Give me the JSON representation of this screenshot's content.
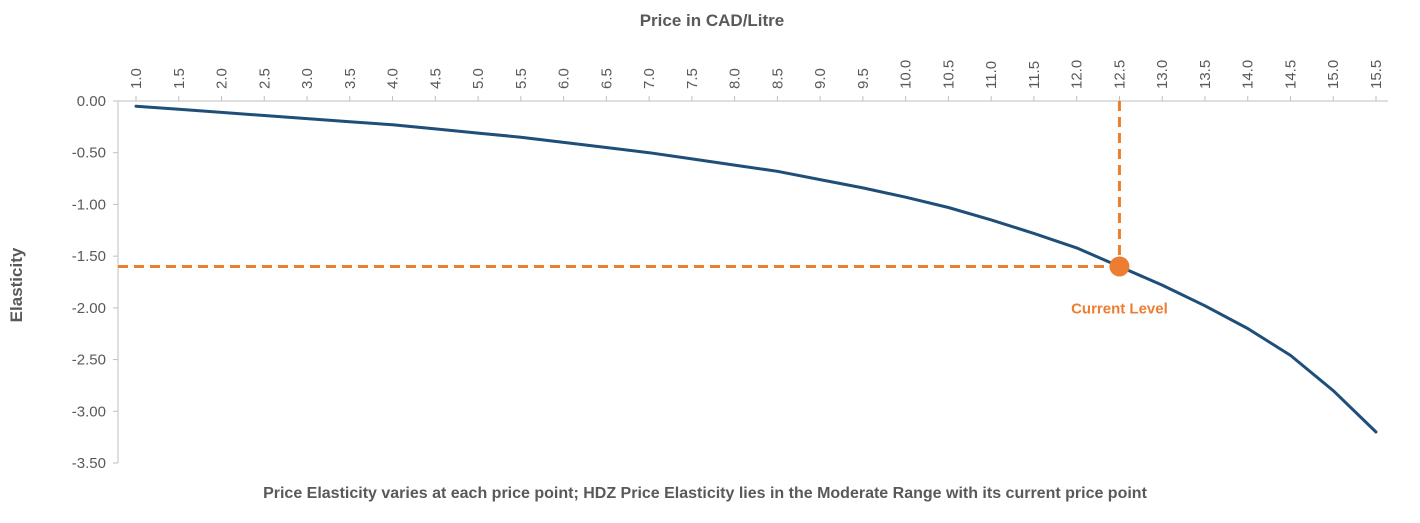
{
  "chart_data": {
    "type": "line",
    "title": "Price in CAD/Litre",
    "xlabel": "Price in CAD/Litre",
    "ylabel": "Elasticity",
    "caption": "Price Elasticity varies at each price point; HDZ Price Elasticity lies in the Moderate Range with its current price point",
    "x_axis_position": "top",
    "xlim": [
      1.0,
      15.5
    ],
    "ylim": [
      -3.5,
      0.0
    ],
    "x_ticks": [
      "1.0",
      "1.5",
      "2.0",
      "2.5",
      "3.0",
      "3.5",
      "4.0",
      "4.5",
      "5.0",
      "5.5",
      "6.0",
      "6.5",
      "7.0",
      "7.5",
      "8.0",
      "8.5",
      "9.0",
      "9.5",
      "10.0",
      "10.5",
      "11.0",
      "11.5",
      "12.0",
      "12.5",
      "13.0",
      "13.5",
      "14.0",
      "14.5",
      "15.0",
      "15.5"
    ],
    "y_ticks": [
      "0.00",
      "-0.50",
      "-1.00",
      "-1.50",
      "-2.00",
      "-2.50",
      "-3.00",
      "-3.50"
    ],
    "grid": false,
    "series": [
      {
        "x": [
          1.0,
          1.5,
          2.0,
          2.5,
          3.0,
          3.5,
          4.0,
          4.5,
          5.0,
          5.5,
          6.0,
          6.5,
          7.0,
          7.5,
          8.0,
          8.5,
          9.0,
          9.5,
          10.0,
          10.5,
          11.0,
          11.5,
          12.0,
          12.5,
          13.0,
          13.5,
          14.0,
          14.5,
          15.0,
          15.5
        ],
        "y": [
          -0.05,
          -0.08,
          -0.11,
          -0.14,
          -0.17,
          -0.2,
          -0.23,
          -0.27,
          -0.31,
          -0.35,
          -0.4,
          -0.45,
          -0.5,
          -0.56,
          -0.62,
          -0.68,
          -0.76,
          -0.84,
          -0.93,
          -1.03,
          -1.15,
          -1.28,
          -1.42,
          -1.6,
          -1.78,
          -1.98,
          -2.2,
          -2.46,
          -2.8,
          -3.2
        ],
        "color": "#1f4e79"
      }
    ],
    "annotation": {
      "label": "Current Level",
      "x": 12.5,
      "y": -1.6,
      "color": "#ed7d31"
    },
    "axis_color": "#bfbfbf",
    "text_color": "#595959"
  }
}
